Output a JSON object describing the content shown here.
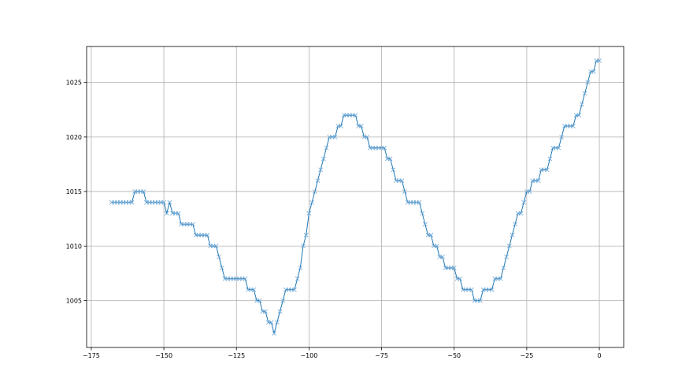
{
  "chart_data": {
    "type": "line",
    "title": "",
    "xlabel": "",
    "ylabel": "",
    "xlim": [
      -176.6,
      8.4
    ],
    "ylim": [
      1000.7,
      1028.3
    ],
    "grid": true,
    "marker": "x",
    "color": "#1f77b4",
    "x_ticks": [
      -175,
      -150,
      -125,
      -100,
      -75,
      -50,
      -25,
      0
    ],
    "x_tick_labels": [
      "−175",
      "−150",
      "−125",
      "−100",
      "−75",
      "−50",
      "−25",
      "0"
    ],
    "y_ticks": [
      1005,
      1010,
      1015,
      1020,
      1025
    ],
    "y_tick_labels": [
      "1005",
      "1010",
      "1015",
      "1020",
      "1025"
    ],
    "x": [
      -168,
      -167,
      -166,
      -165,
      -164,
      -163,
      -162,
      -161,
      -160,
      -159,
      -158,
      -157,
      -156,
      -155,
      -154,
      -153,
      -152,
      -151,
      -150,
      -149,
      -148,
      -147,
      -146,
      -145,
      -144,
      -143,
      -142,
      -141,
      -140,
      -139,
      -138,
      -137,
      -136,
      -135,
      -134,
      -133,
      -132,
      -131,
      -130,
      -129,
      -128,
      -127,
      -126,
      -125,
      -124,
      -123,
      -122,
      -121,
      -120,
      -119,
      -118,
      -117,
      -116,
      -115,
      -114,
      -113,
      -112,
      -111,
      -110,
      -109,
      -108,
      -107,
      -106,
      -105,
      -104,
      -103,
      -102,
      -101,
      -100,
      -99,
      -98,
      -97,
      -96,
      -95,
      -94,
      -93,
      -92,
      -91,
      -90,
      -89,
      -88,
      -87,
      -86,
      -85,
      -84,
      -83,
      -82,
      -81,
      -80,
      -79,
      -78,
      -77,
      -76,
      -75,
      -74,
      -73,
      -72,
      -71,
      -70,
      -69,
      -68,
      -67,
      -66,
      -65,
      -64,
      -63,
      -62,
      -61,
      -60,
      -59,
      -58,
      -57,
      -56,
      -55,
      -54,
      -53,
      -52,
      -51,
      -50,
      -49,
      -48,
      -47,
      -46,
      -45,
      -44,
      -43,
      -42,
      -41,
      -40,
      -39,
      -38,
      -37,
      -36,
      -35,
      -34,
      -33,
      -32,
      -31,
      -30,
      -29,
      -28,
      -27,
      -26,
      -25,
      -24,
      -23,
      -22,
      -21,
      -20,
      -19,
      -18,
      -17,
      -16,
      -15,
      -14,
      -13,
      -12,
      -11,
      -10,
      -9,
      -8,
      -7,
      -6,
      -5,
      -4,
      -3,
      -2,
      -1,
      0
    ],
    "y": [
      1014,
      1014,
      1014,
      1014,
      1014,
      1014,
      1014,
      1014,
      1015,
      1015,
      1015,
      1015,
      1014,
      1014,
      1014,
      1014,
      1014,
      1014,
      1014,
      1013,
      1014,
      1013,
      1013,
      1013,
      1012,
      1012,
      1012,
      1012,
      1012,
      1011,
      1011,
      1011,
      1011,
      1011,
      1010,
      1010,
      1010,
      1009,
      1008,
      1007,
      1007,
      1007,
      1007,
      1007,
      1007,
      1007,
      1007,
      1006,
      1006,
      1006,
      1005,
      1005,
      1004,
      1004,
      1003,
      1003,
      1002,
      1003,
      1004,
      1005,
      1006,
      1006,
      1006,
      1006,
      1007,
      1008,
      1010,
      1011,
      1013,
      1014,
      1015,
      1016,
      1017,
      1018,
      1019,
      1020,
      1020,
      1020,
      1021,
      1021,
      1022,
      1022,
      1022,
      1022,
      1022,
      1021,
      1021,
      1020,
      1020,
      1019,
      1019,
      1019,
      1019,
      1019,
      1019,
      1018,
      1018,
      1017,
      1016,
      1016,
      1016,
      1015,
      1014,
      1014,
      1014,
      1014,
      1014,
      1013,
      1012,
      1011,
      1011,
      1010,
      1010,
      1009,
      1009,
      1008,
      1008,
      1008,
      1008,
      1007,
      1007,
      1006,
      1006,
      1006,
      1006,
      1005,
      1005,
      1005,
      1006,
      1006,
      1006,
      1006,
      1007,
      1007,
      1007,
      1008,
      1009,
      1010,
      1011,
      1012,
      1013,
      1013,
      1014,
      1015,
      1015,
      1016,
      1016,
      1016,
      1017,
      1017,
      1017,
      1018,
      1019,
      1019,
      1019,
      1020,
      1021,
      1021,
      1021,
      1021,
      1022,
      1022,
      1023,
      1024,
      1025,
      1026,
      1026,
      1027,
      1027
    ]
  }
}
